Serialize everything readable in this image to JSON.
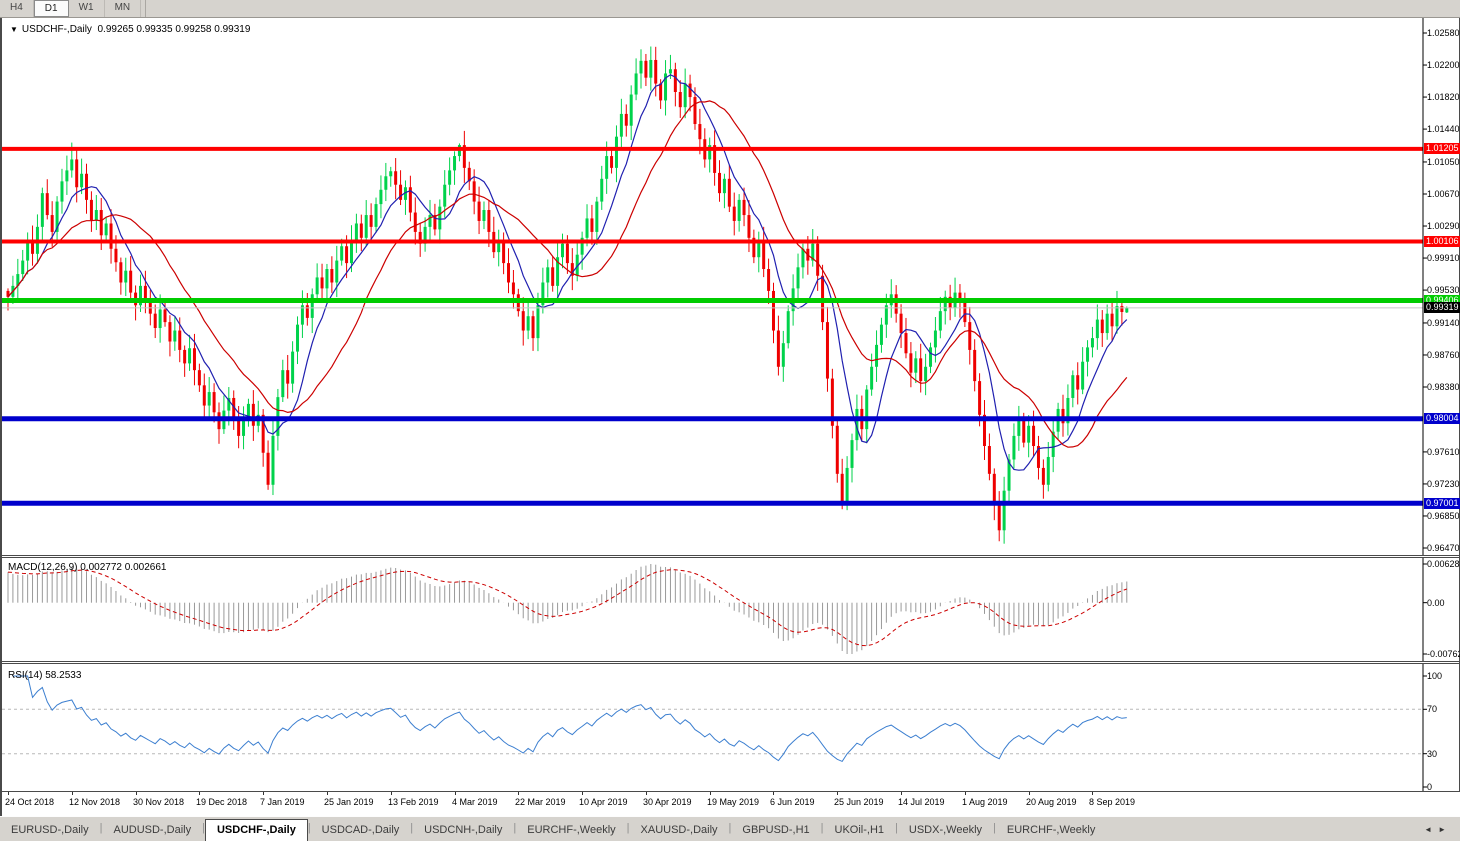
{
  "toolbar": {
    "timeframes": [
      {
        "label": "H4",
        "active": false
      },
      {
        "label": "D1",
        "active": true
      },
      {
        "label": "W1",
        "active": false
      },
      {
        "label": "MN",
        "active": false
      }
    ]
  },
  "chart": {
    "title": {
      "symbol": "USDCHF-,Daily",
      "ohlc": "0.99265 0.99335 0.99258 0.99319"
    }
  },
  "macd": {
    "name": "MACD(12,26,9)",
    "values": "0.002772 0.002661",
    "axis_top": "0.006286",
    "axis_zero": "0.00",
    "axis_bottom": "-0.00762"
  },
  "rsi": {
    "name": "RSI(14)",
    "value": "58.2533",
    "axis": [
      "100",
      "70",
      "30",
      "0"
    ],
    "guides": [
      70,
      30
    ]
  },
  "tabs": {
    "items": [
      "EURUSD-,Daily",
      "AUDUSD-,Daily",
      "USDCHF-,Daily",
      "USDCAD-,Daily",
      "USDCNH-,Daily",
      "EURCHF-,Weekly",
      "XAUUSD-,Daily",
      "GBPUSD-,H1",
      "UKOil-,H1",
      "USDX-,Weekly",
      "EURCHF-,Weekly"
    ],
    "active_index": 2,
    "scroll_left_icon": "◄",
    "scroll_right_icon": "►"
  },
  "chart_data": {
    "type": "candlestick",
    "symbol": "USDCHF",
    "timeframe": "Daily",
    "current": {
      "open": 0.99265,
      "high": 0.99335,
      "low": 0.99258,
      "close": 0.99319
    },
    "y_ticks": [
      "1.02580",
      "1.02200",
      "1.01820",
      "1.01440",
      "1.01050",
      "1.00670",
      "1.00290",
      "0.99910",
      "0.99530",
      "0.99140",
      "0.98760",
      "0.98380",
      "0.97610",
      "0.97230",
      "0.96850",
      "0.96470"
    ],
    "y_range": {
      "top": 1.0258,
      "bottom": 0.9647
    },
    "levels": [
      {
        "value": 1.01205,
        "label": "1.01205",
        "color": "#ff0000",
        "width": 4,
        "kind": "resistance"
      },
      {
        "value": 1.00106,
        "label": "1.00106",
        "color": "#ff0000",
        "width": 4,
        "kind": "resistance"
      },
      {
        "value": 0.99406,
        "label": "0.99406",
        "color": "#00cc00",
        "width": 5,
        "kind": "pivot"
      },
      {
        "value": 0.99319,
        "label": "0.99319",
        "color": "#c8c8c8",
        "width": 1,
        "kind": "bid",
        "label_bg": "#000000"
      },
      {
        "value": 0.98004,
        "label": "0.98004",
        "color": "#0000cc",
        "width": 5,
        "kind": "support"
      },
      {
        "value": 0.97001,
        "label": "0.97001",
        "color": "#0000cc",
        "width": 5,
        "kind": "support"
      }
    ],
    "x_labels": [
      {
        "text": "24 Oct 2018",
        "i": 0
      },
      {
        "text": "12 Nov 2018",
        "i": 13
      },
      {
        "text": "30 Nov 2018",
        "i": 26
      },
      {
        "text": "19 Dec 2018",
        "i": 39
      },
      {
        "text": "7 Jan 2019",
        "i": 52
      },
      {
        "text": "25 Jan 2019",
        "i": 65
      },
      {
        "text": "13 Feb 2019",
        "i": 78
      },
      {
        "text": "4 Mar 2019",
        "i": 91
      },
      {
        "text": "22 Mar 2019",
        "i": 104
      },
      {
        "text": "10 Apr 2019",
        "i": 117
      },
      {
        "text": "30 Apr 2019",
        "i": 130
      },
      {
        "text": "19 May 2019",
        "i": 143
      },
      {
        "text": "6 Jun 2019",
        "i": 156
      },
      {
        "text": "25 Jun 2019",
        "i": 169
      },
      {
        "text": "14 Jul 2019",
        "i": 182
      },
      {
        "text": "1 Aug 2019",
        "i": 195
      },
      {
        "text": "20 Aug 2019",
        "i": 208
      },
      {
        "text": "8 Sep 2019",
        "i": 221
      }
    ],
    "closes": [
      0.9945,
      0.9958,
      0.9972,
      0.9988,
      1.0012,
      0.9996,
      1.0028,
      1.0068,
      1.0042,
      1.0022,
      1.0058,
      1.0082,
      1.0095,
      1.0108,
      1.0075,
      1.0091,
      1.006,
      1.0036,
      1.0048,
      1.0018,
      1.0032,
      1.0002,
      0.9986,
      0.9962,
      0.9976,
      0.995,
      0.9935,
      0.9958,
      0.9942,
      0.9925,
      0.9908,
      0.993,
      0.9915,
      0.9892,
      0.9905,
      0.9882,
      0.9866,
      0.9884,
      0.9858,
      0.984,
      0.9816,
      0.9832,
      0.9808,
      0.9788,
      0.981,
      0.9825,
      0.9798,
      0.978,
      0.98,
      0.9818,
      0.9792,
      0.9805,
      0.976,
      0.9722,
      0.978,
      0.9826,
      0.9858,
      0.9842,
      0.988,
      0.9912,
      0.9935,
      0.992,
      0.9948,
      0.9968,
      0.9955,
      0.9978,
      0.9962,
      0.9988,
      1.0005,
      0.9985,
      1.0012,
      1.0032,
      1.0015,
      1.0042,
      1.0028,
      1.0055,
      1.0072,
      1.0088,
      1.0094,
      1.0078,
      1.006,
      1.0075,
      1.0045,
      1.0022,
      1.0008,
      1.0028,
      1.0042,
      1.0025,
      1.0052,
      1.0078,
      1.0095,
      1.0112,
      1.0125,
      1.0098,
      1.0082,
      1.0058,
      1.0035,
      1.0048,
      1.0022,
      0.9998,
      1.0012,
      0.9985,
      0.9962,
      0.9948,
      0.9928,
      0.9905,
      0.9922,
      0.9896,
      0.9935,
      0.9962,
      0.998,
      0.9958,
      0.9992,
      1.0008,
      0.9985,
      0.997,
      0.9995,
      1.0015,
      1.0038,
      1.0022,
      1.0058,
      1.0085,
      1.0112,
      1.0098,
      1.0135,
      1.0162,
      1.0148,
      1.0185,
      1.021,
      1.0225,
      1.0205,
      1.0226,
      1.0198,
      1.0178,
      1.021,
      1.0215,
      1.0188,
      1.017,
      1.0198,
      1.0182,
      1.015,
      1.0132,
      1.0108,
      1.0125,
      1.0092,
      1.0068,
      1.0085,
      1.0052,
      1.0035,
      1.006,
      1.0042,
      1.0015,
      0.9992,
      1.001,
      0.9978,
      0.9952,
      0.9905,
      0.9862,
      0.989,
      0.9928,
      0.9955,
      0.998,
      1.0002,
      0.9988,
      1.0008,
      0.997,
      0.9915,
      0.9848,
      0.9792,
      0.9735,
      0.9698,
      0.9742,
      0.9775,
      0.9812,
      0.9788,
      0.9835,
      0.9862,
      0.9888,
      0.9912,
      0.9935,
      0.9948,
      0.9925,
      0.9902,
      0.9878,
      0.9855,
      0.9872,
      0.9845,
      0.9862,
      0.9885,
      0.9905,
      0.9928,
      0.9945,
      0.9932,
      0.995,
      0.9938,
      0.9915,
      0.9882,
      0.9845,
      0.9805,
      0.9768,
      0.9735,
      0.9698,
      0.9668,
      0.9715,
      0.9752,
      0.978,
      0.9798,
      0.9772,
      0.9792,
      0.9768,
      0.9742,
      0.9722,
      0.9755,
      0.9785,
      0.9812,
      0.9795,
      0.9825,
      0.9852,
      0.9835,
      0.9868,
      0.9885,
      0.9896,
      0.9918,
      0.9902,
      0.9925,
      0.991,
      0.9934,
      0.9927,
      0.99319
    ],
    "overrides": {
      "0": {
        "o": 0.9952
      },
      "13": {
        "h": 1.0128
      },
      "53": {
        "l": 0.9716
      },
      "92": {
        "h": 1.0127
      },
      "131": {
        "h": 1.0242
      },
      "170": {
        "l": 0.9693
      },
      "202": {
        "l": 0.9655
      },
      "226": {
        "h": 0.9952
      },
      "228": {
        "o": 0.99265,
        "h": 0.99335,
        "l": 0.99258,
        "c": 0.99319
      }
    },
    "ma": [
      {
        "name": "MA fast",
        "period": 8,
        "color": "#2020b0"
      },
      {
        "name": "MA slow",
        "period": 20,
        "color": "#cc0000"
      }
    ],
    "colors": {
      "bull": "#00d24b",
      "bear": "#ee0000",
      "macd_hist": "#999999",
      "macd_signal": "#cc0000",
      "rsi_line": "#3c7fd0",
      "bid_line": "#c8c8c8"
    }
  }
}
